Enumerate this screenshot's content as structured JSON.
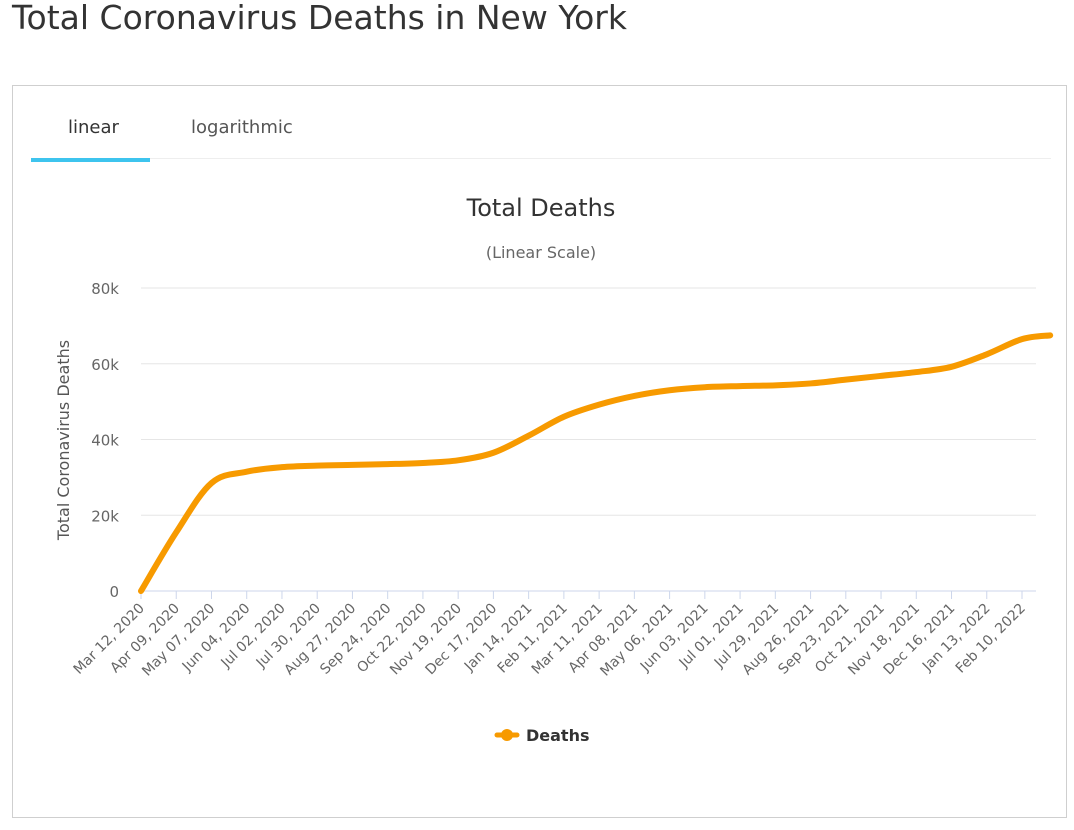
{
  "page": {
    "title": "Total Coronavirus Deaths in New York"
  },
  "tabs": [
    {
      "label": "linear",
      "active": true
    },
    {
      "label": "logarithmic",
      "active": false
    }
  ],
  "colors": {
    "accent": "#3ec4ee",
    "series": "#f79a00",
    "grid": "#e6e6e6"
  },
  "chart_data": {
    "type": "line",
    "title": "Total Deaths",
    "subtitle": "(Linear Scale)",
    "ylabel": "Total Coronavirus Deaths",
    "xlabel": "",
    "ylim": [
      0,
      80000
    ],
    "yticks": [
      0,
      20000,
      40000,
      60000,
      80000
    ],
    "ytick_labels": [
      "0",
      "20k",
      "40k",
      "60k",
      "80k"
    ],
    "xtick_labels": [
      "Mar 12, 2020",
      "Apr 09, 2020",
      "May 07, 2020",
      "Jun 04, 2020",
      "Jul 02, 2020",
      "Jul 30, 2020",
      "Aug 27, 2020",
      "Sep 24, 2020",
      "Oct 22, 2020",
      "Nov 19, 2020",
      "Dec 17, 2020",
      "Jan 14, 2021",
      "Feb 11, 2021",
      "Mar 11, 2021",
      "Apr 08, 2021",
      "May 06, 2021",
      "Jun 03, 2021",
      "Jul 01, 2021",
      "Jul 29, 2021",
      "Aug 26, 2021",
      "Sep 23, 2021",
      "Oct 21, 2021",
      "Nov 18, 2021",
      "Dec 16, 2021",
      "Jan 13, 2022",
      "Feb 10, 2022"
    ],
    "legend": {
      "label": "Deaths",
      "position": "bottom-center"
    },
    "series": [
      {
        "name": "Deaths",
        "x": [
          0,
          1,
          2,
          3,
          4,
          5,
          6,
          7,
          8,
          9,
          10,
          11,
          12,
          13,
          14,
          15,
          16,
          17,
          18,
          19,
          20,
          21,
          22,
          23,
          24,
          25,
          25.8
        ],
        "values": [
          0,
          15500,
          28500,
          31500,
          32700,
          33100,
          33300,
          33500,
          33800,
          34500,
          36500,
          41000,
          46000,
          49200,
          51500,
          53000,
          53800,
          54100,
          54300,
          54800,
          55800,
          56800,
          57800,
          59200,
          62500,
          66500,
          67500
        ]
      }
    ]
  }
}
